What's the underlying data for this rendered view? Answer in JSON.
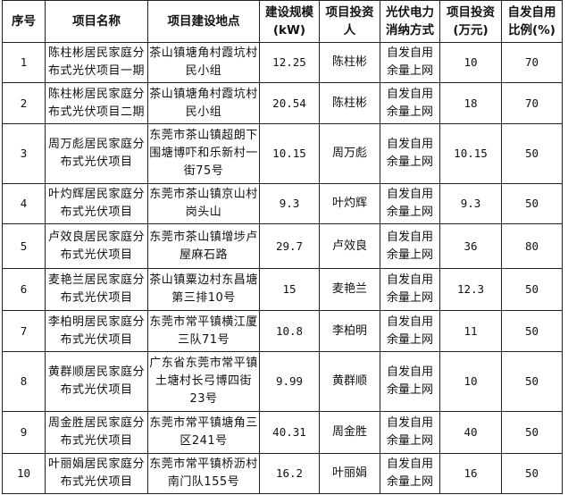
{
  "headers": [
    "序号",
    "项目名称",
    "项目建设地点",
    "建设规模(kW)",
    "项目投资人",
    "光伏电力消纳方式",
    "项目投资(万元)",
    "自发自用比例(%)"
  ],
  "rows": [
    {
      "no": "1",
      "name": "陈柱彬居民家庭分布式光伏项目一期",
      "location": "茶山镇塘角村霞坑村民小组",
      "scale": "12.25",
      "investor": "陈柱彬",
      "mode": "自发自用余量上网",
      "investment": "10",
      "ratio": "70"
    },
    {
      "no": "2",
      "name": "陈柱彬居民家庭分布式光伏项目二期",
      "location": "茶山镇塘角村霞坑村民小组",
      "scale": "20.54",
      "investor": "陈柱彬",
      "mode": "自发自用余量上网",
      "investment": "18",
      "ratio": "70"
    },
    {
      "no": "3",
      "name": "周万彪居民家庭分布式光伏项目",
      "location": "东莞市茶山镇超朗下围塘博吓和乐新村一街75号",
      "scale": "10.15",
      "investor": "周万彪",
      "mode": "自发自用余量上网",
      "investment": "10.15",
      "ratio": "50"
    },
    {
      "no": "4",
      "name": "叶灼辉居民家庭分布式光伏项目",
      "location": "东莞市茶山镇京山村岗头山",
      "scale": "9.3",
      "investor": "叶灼辉",
      "mode": "自发自用余量上网",
      "investment": "9.3",
      "ratio": "50"
    },
    {
      "no": "5",
      "name": "卢效良居民家庭分布式光伏项目",
      "location": "东莞市茶山镇增埗卢屋麻石路",
      "scale": "29.7",
      "investor": "卢效良",
      "mode": "自发自用余量上网",
      "investment": "36",
      "ratio": "80"
    },
    {
      "no": "6",
      "name": "麦艳兰居民家庭分布式光伏项目",
      "location": "茶山镇粟边村东昌塘第三排10号",
      "scale": "15",
      "investor": "麦艳兰",
      "mode": "自发自用余量上网",
      "investment": "12.3",
      "ratio": "50"
    },
    {
      "no": "7",
      "name": "李柏明居民家庭分布式光伏项目",
      "location": "东莞市常平镇横江厦三队71号",
      "scale": "10.8",
      "investor": "李柏明",
      "mode": "自发自用余量上网",
      "investment": "11",
      "ratio": "50"
    },
    {
      "no": "8",
      "name": "黄群顺居民家庭分布式光伏项目",
      "location": "广东省东莞市常平镇土塘村长弓博四街23号",
      "scale": "9.99",
      "investor": "黄群顺",
      "mode": "自发自用余量上网",
      "investment": "10",
      "ratio": "50"
    },
    {
      "no": "9",
      "name": "周金胜居民家庭分布式光伏项目",
      "location": "东莞市常平镇塘角三区241号",
      "scale": "40.31",
      "investor": "周金胜",
      "mode": "自发自用余量上网",
      "investment": "40",
      "ratio": "50"
    },
    {
      "no": "10",
      "name": "叶丽娟居民家庭分布式光伏项目",
      "location": "东莞市常平镇桥沥村南门队155号",
      "scale": "16.2",
      "investor": "叶丽娟",
      "mode": "自发自用余量上网",
      "investment": "16",
      "ratio": "50"
    }
  ]
}
